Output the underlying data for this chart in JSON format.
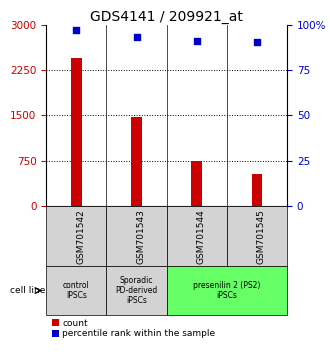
{
  "title": "GDS4141 / 209921_at",
  "categories": [
    "GSM701542",
    "GSM701543",
    "GSM701544",
    "GSM701545"
  ],
  "bar_values": [
    2450,
    1480,
    750,
    530
  ],
  "percentile_values": [
    97,
    93,
    91,
    90.5
  ],
  "bar_color": "#cc0000",
  "percentile_color": "#0000cc",
  "ylim_left": [
    0,
    3000
  ],
  "ylim_right": [
    0,
    100
  ],
  "yticks_left": [
    0,
    750,
    1500,
    2250,
    3000
  ],
  "yticks_right": [
    0,
    25,
    50,
    75,
    100
  ],
  "ytick_labels_right": [
    "0",
    "25",
    "50",
    "75",
    "100%"
  ],
  "grid_values": [
    750,
    1500,
    2250
  ],
  "title_fontsize": 10,
  "axis_label_color_left": "#cc0000",
  "axis_label_color_right": "#0000cc",
  "sample_groups": [
    {
      "label": "control\nIPSCs",
      "start": 0,
      "end": 1,
      "color": "#d3d3d3"
    },
    {
      "label": "Sporadic\nPD-derived\niPSCs",
      "start": 1,
      "end": 2,
      "color": "#d3d3d3"
    },
    {
      "label": "presenilin 2 (PS2)\niPSCs",
      "start": 2,
      "end": 4,
      "color": "#66ff66"
    }
  ],
  "cell_line_label": "cell line",
  "legend_count_label": "count",
  "legend_percentile_label": "percentile rank within the sample",
  "bar_width": 0.18,
  "plot_bg_color": "#ffffff",
  "gsm_box_color": "#d3d3d3"
}
